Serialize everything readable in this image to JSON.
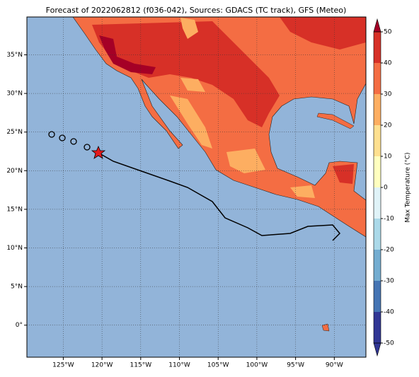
{
  "map": {
    "title": "Forecast of 2022062812 (f036-042), Sources: GDACS (TC track), GFS (Meteo)",
    "lon_ticks": [
      {
        "value": -125,
        "label": "125°W"
      },
      {
        "value": -120,
        "label": "120°W"
      },
      {
        "value": -115,
        "label": "115°W"
      },
      {
        "value": -110,
        "label": "110°W"
      },
      {
        "value": -105,
        "label": "105°W"
      },
      {
        "value": -100,
        "label": "100°W"
      },
      {
        "value": -95,
        "label": "95°W"
      },
      {
        "value": -90,
        "label": "90°W"
      }
    ],
    "lat_ticks": [
      {
        "value": 0,
        "label": "0°"
      },
      {
        "value": 5,
        "label": "5°N"
      },
      {
        "value": 10,
        "label": "10°N"
      },
      {
        "value": 15,
        "label": "15°N"
      },
      {
        "value": 20,
        "label": "20°N"
      },
      {
        "value": 25,
        "label": "25°N"
      },
      {
        "value": 30,
        "label": "30°N"
      },
      {
        "value": 35,
        "label": "35°N"
      }
    ],
    "colorbar": {
      "label": "Max Temperature (°C)",
      "ticks": [
        -50,
        -40,
        -30,
        -20,
        -10,
        0,
        10,
        20,
        30,
        40,
        50
      ],
      "colors": [
        "#313695",
        "#4575b4",
        "#74add1",
        "#abd9e9",
        "#e0f3f8",
        "#ffffbf",
        "#fee090",
        "#fdae61",
        "#f46d43",
        "#d73027"
      ]
    }
  }
}
